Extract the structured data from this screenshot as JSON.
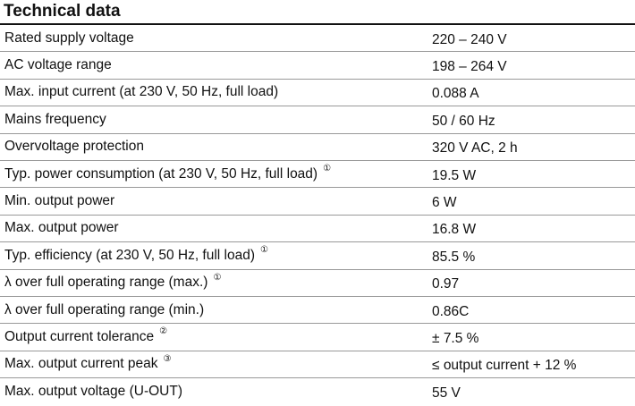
{
  "header": {
    "title": "Technical data"
  },
  "table": {
    "rows": [
      {
        "label": "Rated supply voltage",
        "value": "220 – 240 V"
      },
      {
        "label": "AC voltage range",
        "value": "198 – 264 V"
      },
      {
        "label": "Max. input current (at 230 V, 50 Hz, full load)",
        "value": "0.088 A"
      },
      {
        "label": "Mains frequency",
        "value": "50 / 60 Hz"
      },
      {
        "label": "Overvoltage protection",
        "value": "320 V AC, 2 h"
      },
      {
        "label": "Typ. power consumption (at 230 V, 50 Hz, full load)",
        "note": "①",
        "value": "19.5 W"
      },
      {
        "label": "Min. output power",
        "value": "6 W"
      },
      {
        "label": "Max. output power",
        "value": "16.8 W"
      },
      {
        "label": "Typ. efficiency (at 230 V, 50 Hz, full load)",
        "note": "①",
        "value": "85.5 %"
      },
      {
        "label": "λ over full operating range (max.)",
        "note": "①",
        "value": "0.97"
      },
      {
        "label": "λ over full operating range (min.)",
        "value": "0.86C"
      },
      {
        "label": "Output current tolerance",
        "note": "②",
        "value": "± 7.5 %"
      },
      {
        "label": "Max. output current peak",
        "note": "③",
        "value": "≤ output current + 12 %"
      },
      {
        "label": "Max. output voltage (U-OUT)",
        "value": "55 V"
      }
    ]
  }
}
